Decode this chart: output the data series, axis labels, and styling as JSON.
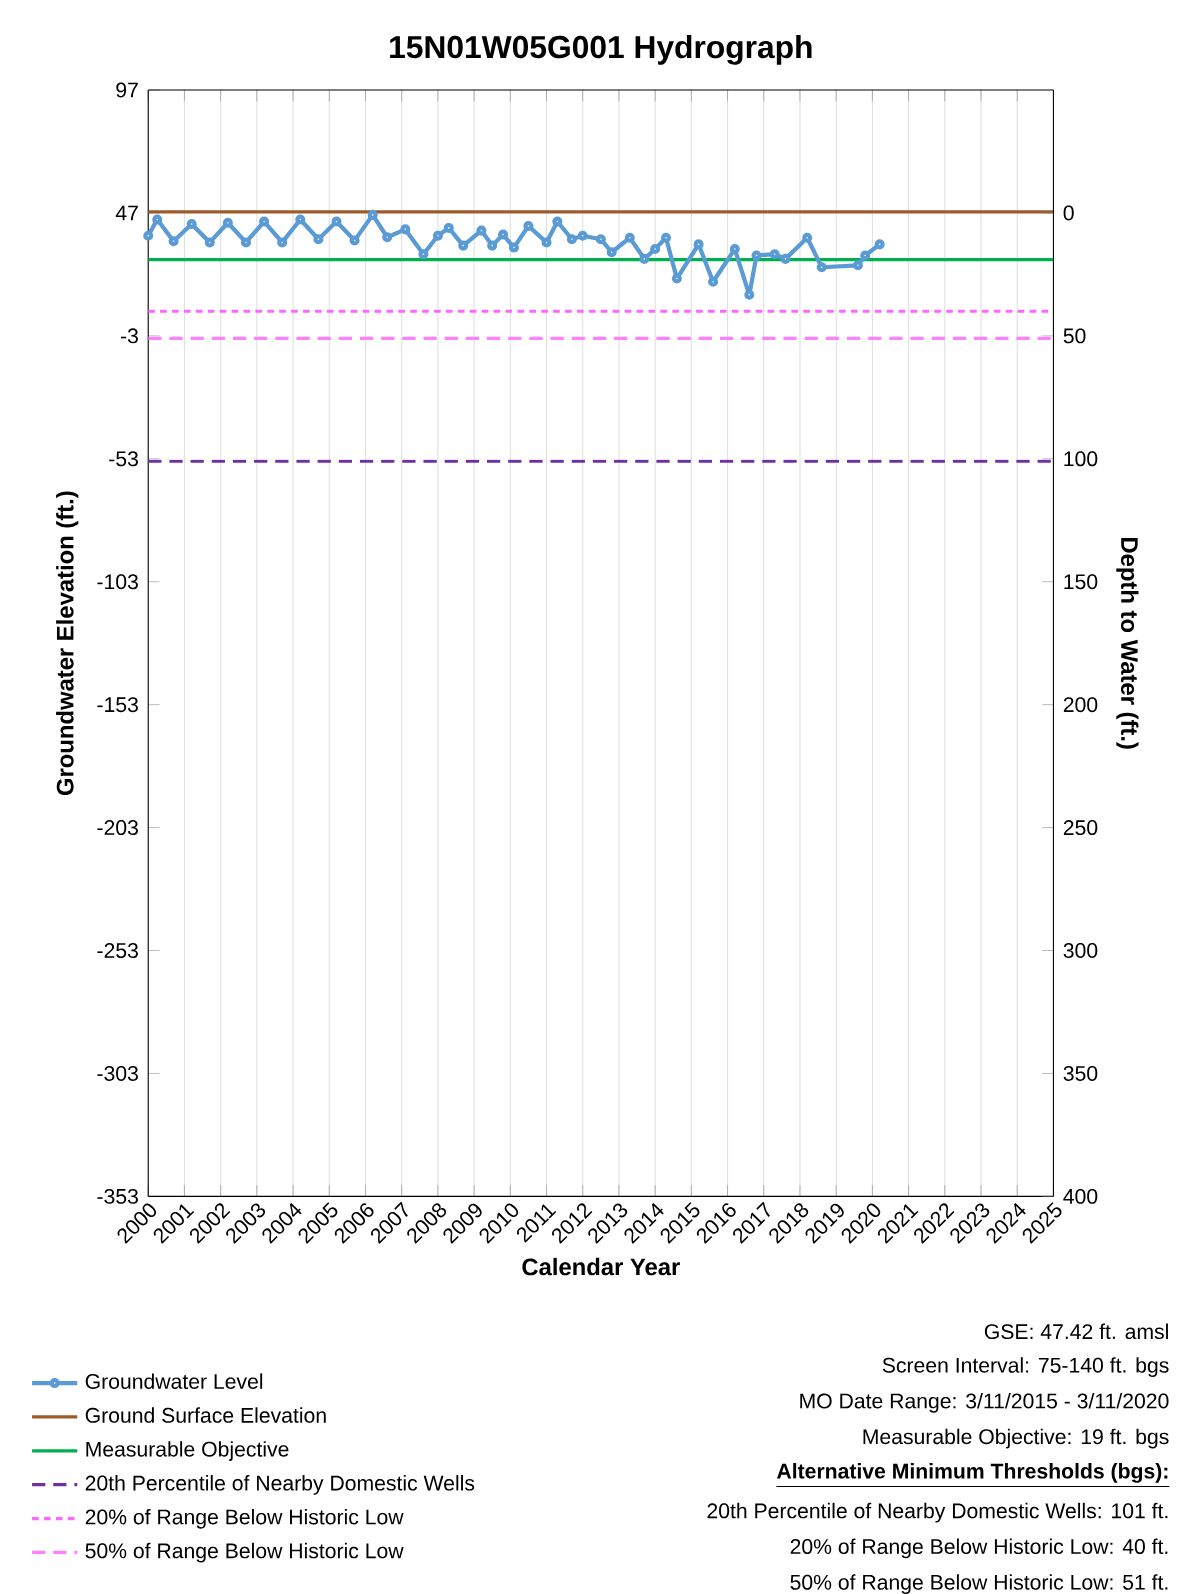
{
  "chart_data": {
    "type": "line",
    "title": "15N01W05G001  Hydrograph",
    "xlabel": "Calendar Year",
    "ylabel": "Groundwater Elevation (ft.)",
    "y2label": "Depth to Water (ft.)",
    "xlim": [
      2000,
      2025
    ],
    "xticks": [
      2000,
      2001,
      2002,
      2003,
      2004,
      2005,
      2006,
      2007,
      2008,
      2009,
      2010,
      2011,
      2012,
      2013,
      2014,
      2015,
      2016,
      2017,
      2018,
      2019,
      2020,
      2021,
      2022,
      2023,
      2024,
      2025
    ],
    "ylim": [
      -353,
      97
    ],
    "yticks": [
      97,
      47,
      -3,
      -53,
      -103,
      -153,
      -203,
      -253,
      -303,
      -353
    ],
    "y2lim": [
      400,
      -50
    ],
    "y2ticks": [
      0,
      50,
      100,
      150,
      200,
      250,
      300,
      350,
      400
    ],
    "grid": "x",
    "legend": "bottom left",
    "marker": "circle",
    "line_style": "solid",
    "series": [
      {
        "name": "Groundwater Level",
        "color": "#5b9bd5",
        "x": [
          2000.0,
          2000.25,
          2000.7,
          2001.2,
          2001.7,
          2002.2,
          2002.7,
          2003.2,
          2003.7,
          2004.2,
          2004.7,
          2005.2,
          2005.7,
          2006.2,
          2006.6,
          2007.1,
          2007.6,
          2008.0,
          2008.3,
          2008.7,
          2009.2,
          2009.5,
          2009.8,
          2010.1,
          2010.5,
          2011.0,
          2011.3,
          2011.7,
          2012.0,
          2012.5,
          2012.8,
          2013.3,
          2013.7,
          2014.0,
          2014.3,
          2014.6,
          2015.2,
          2015.6,
          2016.2,
          2016.6,
          2016.8,
          2017.3,
          2017.6,
          2018.2,
          2018.6,
          2019.6,
          2019.8,
          2020.2
        ],
        "values": [
          37.7,
          44.3,
          35.5,
          42.5,
          35,
          43,
          35,
          43.5,
          35,
          44.3,
          36.3,
          43.5,
          35.8,
          46.2,
          37.1,
          40.3,
          30.2,
          37.7,
          40.9,
          33.7,
          39.8,
          33.7,
          38.2,
          32.9,
          41.7,
          35,
          43.5,
          36.3,
          37.7,
          36.3,
          31,
          36.9,
          28.3,
          32.3,
          36.9,
          20.3,
          34.2,
          19,
          32.3,
          13.7,
          29.7,
          30.2,
          28.3,
          36.9,
          24.9,
          25.7,
          29.7,
          34.2
        ]
      }
    ],
    "ref_lines": [
      {
        "axis": "y",
        "value": 47.42,
        "label": "Ground Surface Elevation",
        "color": "#9c5b28",
        "line_style": "solid"
      },
      {
        "axis": "y2",
        "value": 19,
        "label": "Measurable Objective",
        "color": "#00b050",
        "line_style": "solid"
      },
      {
        "axis": "y2",
        "value": 101,
        "label": "20th Percentile of Nearby Domestic Wells",
        "color": "#7030a0",
        "line_style": "dashed"
      },
      {
        "axis": "y2",
        "value": 40,
        "label": "20% of Range Below Historic Low",
        "color": "#ff66ff",
        "line_style": "dotted"
      },
      {
        "axis": "y2",
        "value": 51,
        "label": "50% of Range Below Historic Low",
        "color": "#ff80ff",
        "line_style": "dashed"
      }
    ],
    "annotations": [
      "GSE: 47.42 ft. amsl",
      "Screen Interval: 75-140 ft. bgs",
      "MO Date Range: 3/11/2015 - 3/11/2020",
      "Measurable Objective: 19 ft. bgs",
      "Alternative  Minimum  Thresholds  (bgs):",
      "20th Percentile of Nearby Domestic Wells: 101 ft.",
      "20% of Range Below Historic Low: 40 ft.",
      "50% of Range Below Historic Low: 51 ft."
    ]
  }
}
